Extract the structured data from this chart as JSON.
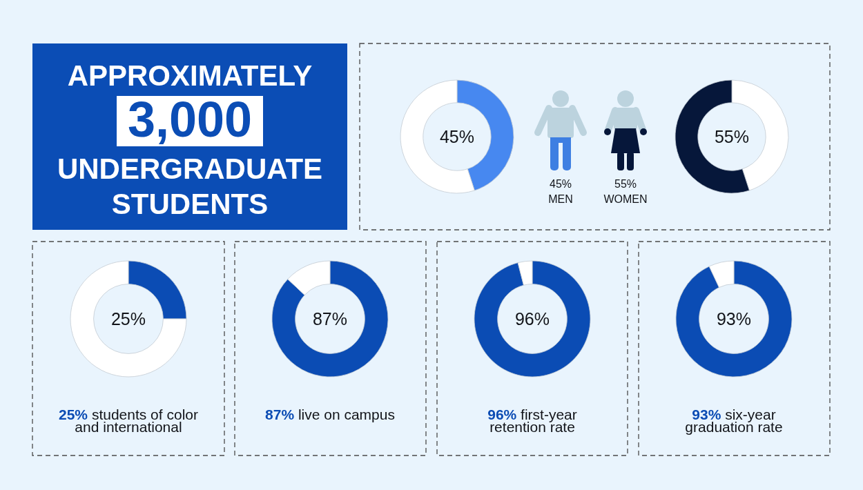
{
  "chart_data": [
    {
      "type": "other",
      "annotations": [
        "APPROXIMATELY",
        "3,000",
        "UNDERGRADUATE",
        "STUDENTS"
      ]
    },
    {
      "type": "donut",
      "categories": [
        null,
        null
      ],
      "values": [
        45,
        55
      ],
      "colors": [
        "#4788f0",
        "#ffffff"
      ],
      "annotations": [
        "45%"
      ]
    },
    {
      "type": "other",
      "annotations": [
        "45%",
        "MEN",
        "55%",
        "WOMEN"
      ]
    },
    {
      "type": "donut",
      "categories": [
        null,
        null
      ],
      "values": [
        45,
        55
      ],
      "colors": [
        "#ffffff",
        "#06173a"
      ],
      "annotations": [
        "55%"
      ]
    },
    {
      "type": "donut",
      "categories": [
        null,
        null
      ],
      "values": [
        25,
        75
      ],
      "colors": [
        "#0b4cb4",
        "#ffffff"
      ],
      "annotations": [
        "25%"
      ],
      "title": "25% students of color\nand international"
    },
    {
      "type": "donut",
      "categories": [
        null,
        null
      ],
      "values": [
        87,
        13
      ],
      "colors": [
        "#0b4cb4",
        "#ffffff"
      ],
      "annotations": [
        "87%"
      ],
      "title": "87% live on campus"
    },
    {
      "type": "donut",
      "categories": [
        null,
        null
      ],
      "values": [
        96,
        4
      ],
      "colors": [
        "#0b4cb4",
        "#ffffff"
      ],
      "annotations": [
        "96%"
      ],
      "title": "96% first-year\nretention rate"
    },
    {
      "type": "donut",
      "categories": [
        null,
        null
      ],
      "values": [
        93,
        7
      ],
      "colors": [
        "#0b4cb4",
        "#ffffff"
      ],
      "annotations": [
        "93%"
      ],
      "title": "93% six-year\ngraduation rate"
    }
  ]
}
